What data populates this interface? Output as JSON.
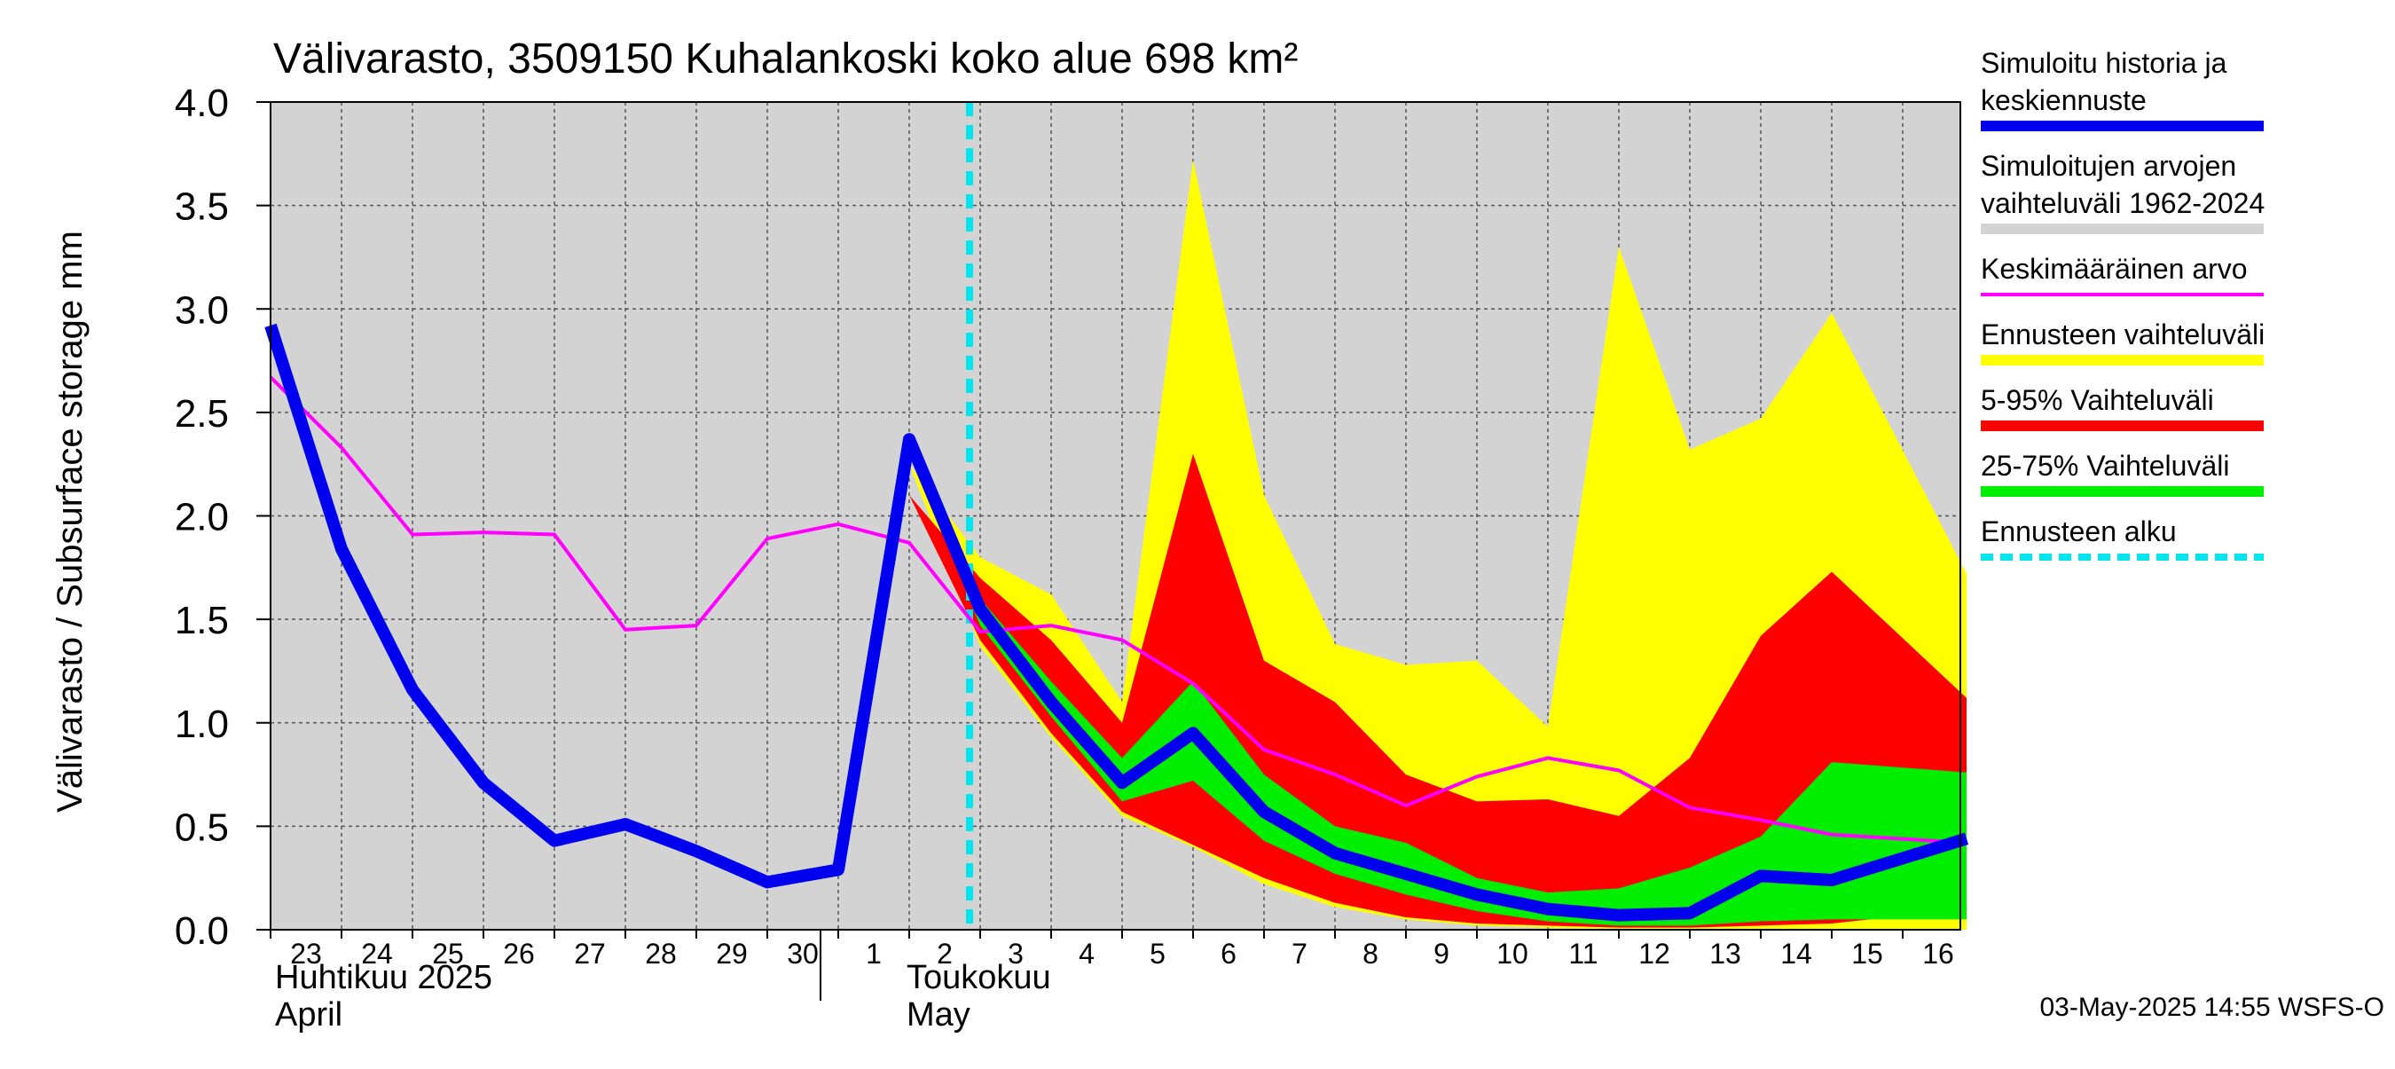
{
  "chart_data": {
    "type": "area",
    "title": "Välivarasto, 3509150 Kuhalankoski koko alue 698 km²",
    "ylabel": "Välivarasto / Subsurface storage  mm",
    "ylim": [
      0.0,
      4.0
    ],
    "yticks": [
      "0.0",
      "0.5",
      "1.0",
      "1.5",
      "2.0",
      "2.5",
      "3.0",
      "3.5",
      "4.0"
    ],
    "grid": true,
    "legend_position": "right",
    "x_tick_labels": [
      "23",
      "24",
      "25",
      "26",
      "27",
      "28",
      "29",
      "30",
      "1",
      "2",
      "3",
      "4",
      "5",
      "6",
      "7",
      "8",
      "9",
      "10",
      "11",
      "12",
      "13",
      "14",
      "15",
      "16"
    ],
    "month_labels": [
      {
        "line1": "Huhtikuu  2025",
        "line2": "April"
      },
      {
        "line1": "Toukokuu",
        "line2": "May"
      }
    ],
    "forecast_start_index": 10,
    "timestamp": "03-May-2025 14:55 WSFS-O",
    "colors": {
      "history_band": "#d3d3d3",
      "ensemble_range": "#ffff00",
      "p5_95": "#ff0000",
      "p25_75": "#00ee00",
      "simulated": "#0000ee",
      "mean": "#ff00ff",
      "forecast_start": "#00e5ee"
    },
    "legend": [
      {
        "label_lines": [
          "Simuloitu historia ja",
          "keskiennuste"
        ],
        "color": "#0000ee",
        "style": "thick"
      },
      {
        "label_lines": [
          "Simuloitujen arvojen",
          "vaihteluväli 1962-2024"
        ],
        "color": "#d3d3d3",
        "style": "thick"
      },
      {
        "label_lines": [
          "Keskimääräinen arvo"
        ],
        "color": "#ff00ff",
        "style": "thin"
      },
      {
        "label_lines": [
          "Ennusteen vaihteluväli"
        ],
        "color": "#ffff00",
        "style": "thick"
      },
      {
        "label_lines": [
          "5-95% Vaihteluväli"
        ],
        "color": "#ff0000",
        "style": "thick"
      },
      {
        "label_lines": [
          "25-75% Vaihteluväli"
        ],
        "color": "#00ee00",
        "style": "thick"
      },
      {
        "label_lines": [
          "Ennusteen alku"
        ],
        "color": "#00e5ee",
        "style": "dashed"
      }
    ],
    "series": [
      {
        "name": "Simuloitu historia ja keskiennuste",
        "x": [
          0,
          1,
          2,
          3,
          4,
          5,
          6,
          7,
          8,
          9,
          10,
          11,
          12,
          13,
          14,
          15,
          16,
          17,
          18,
          19,
          20,
          21,
          22,
          23.9
        ],
        "values": [
          2.92,
          1.84,
          1.16,
          0.71,
          0.43,
          0.51,
          0.38,
          0.23,
          0.29,
          2.37,
          1.55,
          1.1,
          0.71,
          0.95,
          0.57,
          0.37,
          0.27,
          0.17,
          0.1,
          0.07,
          0.08,
          0.26,
          0.24,
          0.44
        ]
      },
      {
        "name": "Keskimääräinen arvo",
        "x": [
          0,
          1,
          2,
          3,
          4,
          5,
          6,
          7,
          8,
          9,
          10,
          11,
          12,
          13,
          14,
          15,
          16,
          17,
          18,
          19,
          20,
          21,
          22,
          23.9
        ],
        "values": [
          2.67,
          2.33,
          1.91,
          1.92,
          1.91,
          1.45,
          1.47,
          1.89,
          1.96,
          1.87,
          1.44,
          1.47,
          1.4,
          1.19,
          0.87,
          0.75,
          0.6,
          0.74,
          0.83,
          0.77,
          0.59,
          0.53,
          0.46,
          0.42
        ]
      },
      {
        "name": "Ennusteen vaihteluväli",
        "x": [
          9,
          10,
          11,
          12,
          13,
          14,
          15,
          16,
          17,
          18,
          19,
          20,
          21,
          22,
          23.9
        ],
        "upper": [
          2.25,
          1.8,
          1.62,
          1.1,
          3.72,
          2.1,
          1.38,
          1.28,
          1.3,
          0.98,
          3.3,
          2.32,
          2.47,
          2.98,
          1.72
        ],
        "lower": [
          2.25,
          1.37,
          0.93,
          0.55,
          0.4,
          0.22,
          0.11,
          0.05,
          0.02,
          0.01,
          0.0,
          0.0,
          0.0,
          0.0,
          0.0
        ]
      },
      {
        "name": "5-95% Vaihteluväli",
        "x": [
          9,
          10,
          11,
          12,
          13,
          14,
          15,
          16,
          17,
          18,
          19,
          20,
          21,
          22,
          23.9
        ],
        "upper": [
          2.1,
          1.7,
          1.4,
          1.0,
          2.3,
          1.3,
          1.1,
          0.75,
          0.62,
          0.63,
          0.55,
          0.83,
          1.42,
          1.73,
          1.12
        ],
        "lower": [
          2.1,
          1.4,
          0.95,
          0.57,
          0.41,
          0.25,
          0.13,
          0.06,
          0.03,
          0.02,
          0.01,
          0.01,
          0.02,
          0.03,
          0.1
        ]
      },
      {
        "name": "25-75% Vaihteluväli",
        "x": [
          9,
          10,
          11,
          12,
          13,
          14,
          15,
          16,
          17,
          18,
          19,
          20,
          21,
          22,
          23.9
        ],
        "upper": [
          2.3,
          1.6,
          1.2,
          0.83,
          1.2,
          0.75,
          0.5,
          0.42,
          0.25,
          0.18,
          0.2,
          0.3,
          0.45,
          0.81,
          0.76
        ],
        "lower": [
          2.3,
          1.47,
          1.03,
          0.62,
          0.72,
          0.43,
          0.27,
          0.17,
          0.09,
          0.04,
          0.02,
          0.02,
          0.04,
          0.05,
          0.05
        ]
      }
    ]
  }
}
